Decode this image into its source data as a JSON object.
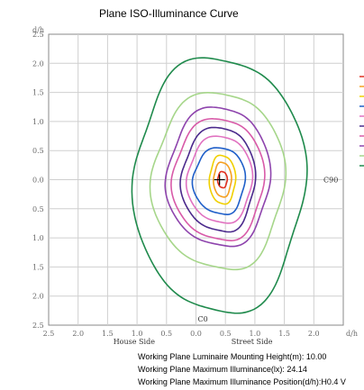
{
  "chart_data": {
    "type": "contour",
    "title": "Plane ISO-Illuminance Curve",
    "y_unit_label": "d/h",
    "x_unit_label": "d/h",
    "x_tick_labels": [
      "2.5",
      "2.0",
      "1.5",
      "1.0",
      "0.5",
      "0.0",
      "0.5",
      "1.0",
      "1.5",
      "2.0"
    ],
    "x_ticks": [
      -2.5,
      -2.0,
      -1.5,
      -1.0,
      -0.5,
      0.0,
      0.5,
      1.0,
      1.5,
      2.0
    ],
    "y_tick_labels": [
      "2.5",
      "2.0",
      "1.5",
      "1.0",
      "0.5",
      "0.0",
      "0.5",
      "1.0",
      "1.5",
      "2.0",
      "2.5"
    ],
    "y_ticks": [
      2.5,
      2.0,
      1.5,
      1.0,
      0.5,
      0.0,
      -0.5,
      -1.0,
      -1.5,
      -2.0,
      -2.5
    ],
    "xlim": [
      -2.5,
      2.5
    ],
    "ylim": [
      -2.5,
      2.5
    ],
    "grid": true,
    "house_side_label": "House Side",
    "street_side_label": "Street Side",
    "c0_label": "C0",
    "c90_label": "C90",
    "center_marker": "+",
    "contours": [
      {
        "color": "#1f8a4c",
        "rx_left": 1.45,
        "rx_right": 1.45,
        "ry_top": 2.1,
        "ry_bottom": 2.3,
        "shift_x": 0.4
      },
      {
        "color": "#a6d68a",
        "rx_left": 1.2,
        "rx_right": 1.05,
        "ry_top": 1.5,
        "ry_bottom": 1.55,
        "shift_x": 0.45
      },
      {
        "color": "#8e44ad",
        "rx_left": 0.95,
        "rx_right": 0.8,
        "ry_top": 1.25,
        "ry_bottom": 1.15,
        "shift_x": 0.45
      },
      {
        "color": "#d85aa8",
        "rx_left": 0.85,
        "rx_right": 0.7,
        "ry_top": 1.05,
        "ry_bottom": 1.05,
        "shift_x": 0.45
      },
      {
        "color": "#4b2a8c",
        "rx_left": 0.7,
        "rx_right": 0.55,
        "ry_top": 0.9,
        "ry_bottom": 0.9,
        "shift_x": 0.45
      },
      {
        "color": "#e071c0",
        "rx_left": 0.6,
        "rx_right": 0.5,
        "ry_top": 0.75,
        "ry_bottom": 0.75,
        "shift_x": 0.45
      },
      {
        "color": "#1f5fc9",
        "rx_left": 0.5,
        "rx_right": 0.38,
        "ry_top": 0.55,
        "ry_bottom": 0.6,
        "shift_x": 0.45
      },
      {
        "color": "#f0d000",
        "rx_left": 0.22,
        "rx_right": 0.22,
        "ry_top": 0.42,
        "ry_bottom": 0.42,
        "shift_x": 0.45
      },
      {
        "color": "#f5a020",
        "rx_left": 0.15,
        "rx_right": 0.15,
        "ry_top": 0.3,
        "ry_bottom": 0.3,
        "shift_x": 0.45
      },
      {
        "color": "#e03020",
        "rx_left": 0.08,
        "rx_right": 0.08,
        "ry_top": 0.14,
        "ry_bottom": 0.14,
        "shift_x": 0.45
      }
    ],
    "legend_colors": [
      "#e03020",
      "#f5a020",
      "#f0d000",
      "#1f5fc9",
      "#e071c0",
      "#4b2a8c",
      "#d85aa8",
      "#8e44ad",
      "#a6d68a",
      "#1f8a4c"
    ],
    "legend_placement": "right"
  },
  "info": {
    "line1": "Working Plane Luminaire Mounting Height(m): 10.00",
    "line2": "Working Plane Maximum Illuminance(lx): 24.14",
    "line3": "Working Plane Maximum Illuminance Position(d/h):H0.4 V"
  }
}
